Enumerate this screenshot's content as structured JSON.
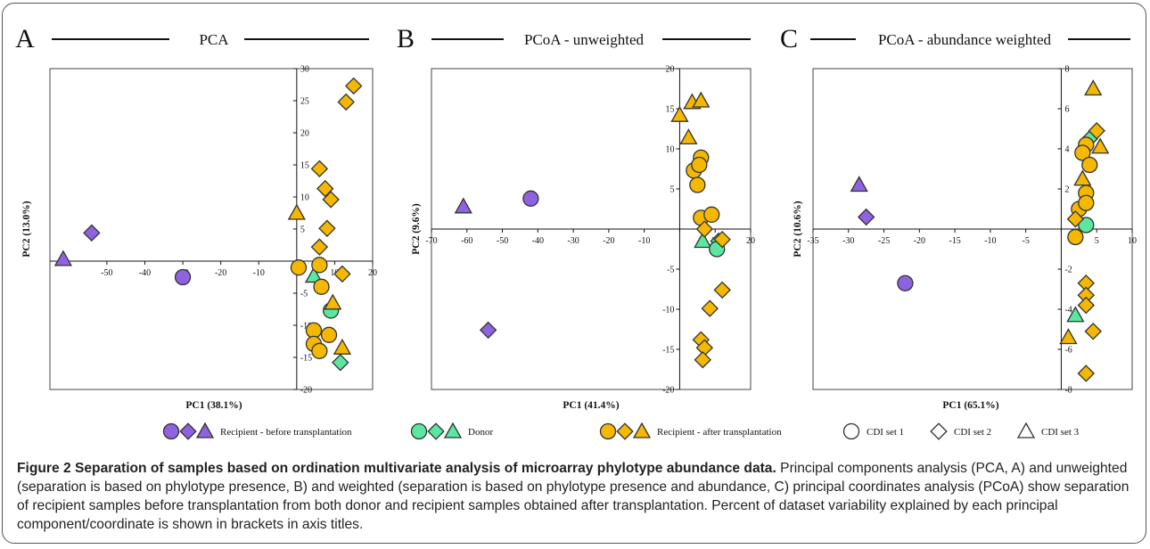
{
  "colors": {
    "before": "#8f63df",
    "donor": "#5ae8a0",
    "after": "#f5b800",
    "stroke": "#333333"
  },
  "legend": [
    {
      "markers": [
        "circle",
        "diamond",
        "triangle"
      ],
      "color": "before",
      "label": "Recipient - before transplantation"
    },
    {
      "markers": [
        "circle",
        "diamond",
        "triangle"
      ],
      "color": "donor",
      "label": "Donor"
    },
    {
      "markers": [
        "circle",
        "diamond",
        "triangle"
      ],
      "color": "after",
      "label": "Recipient - after transplantation"
    },
    {
      "markers": [
        "circle"
      ],
      "color": "none",
      "label": "CDI set 1"
    },
    {
      "markers": [
        "diamond"
      ],
      "color": "none",
      "label": "CDI set 2"
    },
    {
      "markers": [
        "triangle"
      ],
      "color": "none",
      "label": "CDI set 3"
    }
  ],
  "caption": {
    "title": "Figure 2 Separation of samples based on ordination multivariate analysis of microarray phylotype abundance data.",
    "body": "Principal components analysis (PCA, A) and unweighted (separation is based on phylotype presence, B) and weighted (separation is based on phylotype presence and abundance, C) principal coordinates analysis (PCoA) show separation of recipient samples before transplantation from both donor and recipient samples obtained after transplantation. Percent of dataset variability explained by each principal component/coordinate is shown in brackets in axis titles."
  },
  "chart_data": [
    {
      "type": "scatter",
      "panel": "A",
      "title": "PCA",
      "xlabel": "PC1 (38.1%)",
      "ylabel": "PC2 (13.0%)",
      "xlim": [
        -65,
        20
      ],
      "ylim": [
        -20,
        30
      ],
      "xticks": [
        -60,
        -50,
        -40,
        -30,
        -20,
        -10,
        0,
        10,
        20
      ],
      "xtick_labels": [
        "",
        "-50",
        "-40",
        "-30",
        "-20",
        "-10",
        "",
        "10",
        "20"
      ],
      "yticks": [
        -20,
        -15,
        -10,
        -5,
        0,
        5,
        10,
        15,
        20,
        25,
        30
      ],
      "yticklabel_side": "right",
      "points": [
        {
          "x": -61.5,
          "y": 0.3,
          "shape": "triangle",
          "group": "before"
        },
        {
          "x": -54,
          "y": 4.4,
          "shape": "diamond",
          "group": "before"
        },
        {
          "x": -30,
          "y": -2.5,
          "shape": "circle",
          "group": "before"
        },
        {
          "x": 4.5,
          "y": -2.3,
          "shape": "triangle",
          "group": "donor"
        },
        {
          "x": 9,
          "y": -7.7,
          "shape": "circle",
          "group": "donor"
        },
        {
          "x": 11.5,
          "y": -15.8,
          "shape": "diamond",
          "group": "donor"
        },
        {
          "x": 15,
          "y": 27.3,
          "shape": "diamond",
          "group": "after"
        },
        {
          "x": 13,
          "y": 24.8,
          "shape": "diamond",
          "group": "after"
        },
        {
          "x": 6,
          "y": 14.4,
          "shape": "diamond",
          "group": "after"
        },
        {
          "x": 7.5,
          "y": 11.3,
          "shape": "diamond",
          "group": "after"
        },
        {
          "x": 9,
          "y": 9.6,
          "shape": "diamond",
          "group": "after"
        },
        {
          "x": 0,
          "y": 7.5,
          "shape": "triangle",
          "group": "after"
        },
        {
          "x": 8,
          "y": 5.1,
          "shape": "diamond",
          "group": "after"
        },
        {
          "x": 6,
          "y": 2.2,
          "shape": "diamond",
          "group": "after"
        },
        {
          "x": 0.5,
          "y": -1.0,
          "shape": "circle",
          "group": "after"
        },
        {
          "x": 6,
          "y": -0.6,
          "shape": "circle",
          "group": "after"
        },
        {
          "x": 12,
          "y": -2.0,
          "shape": "diamond",
          "group": "after"
        },
        {
          "x": 6.5,
          "y": -4.0,
          "shape": "circle",
          "group": "after"
        },
        {
          "x": 9.5,
          "y": -6.5,
          "shape": "triangle",
          "group": "after"
        },
        {
          "x": 4.5,
          "y": -10.8,
          "shape": "circle",
          "group": "after"
        },
        {
          "x": 8.5,
          "y": -11.5,
          "shape": "circle",
          "group": "after"
        },
        {
          "x": 4.5,
          "y": -12.9,
          "shape": "circle",
          "group": "after"
        },
        {
          "x": 6,
          "y": -14.0,
          "shape": "circle",
          "group": "after"
        },
        {
          "x": 12,
          "y": -13.5,
          "shape": "triangle",
          "group": "after"
        }
      ]
    },
    {
      "type": "scatter",
      "panel": "B",
      "title": "PCoA - unweighted",
      "xlabel": "PC1 (41.4%)",
      "ylabel": "PC2 (9.6%)",
      "xlim": [
        -70,
        20
      ],
      "ylim": [
        -20,
        20
      ],
      "xticks": [
        -70,
        -60,
        -50,
        -40,
        -30,
        -20,
        -10,
        0,
        10,
        20
      ],
      "xtick_labels": [
        "-70",
        "-60",
        "-50",
        "-40",
        "-30",
        "-20",
        "-10",
        "",
        "10",
        "20"
      ],
      "yticks": [
        -20,
        -15,
        -10,
        -5,
        0,
        5,
        10,
        15,
        20
      ],
      "yticklabel_side": "left",
      "points": [
        {
          "x": -61,
          "y": 2.8,
          "shape": "triangle",
          "group": "before"
        },
        {
          "x": -42,
          "y": 3.8,
          "shape": "circle",
          "group": "before"
        },
        {
          "x": -54,
          "y": -12.6,
          "shape": "diamond",
          "group": "before"
        },
        {
          "x": 6.5,
          "y": -1.5,
          "shape": "triangle",
          "group": "donor"
        },
        {
          "x": 11,
          "y": -1.5,
          "shape": "diamond",
          "group": "donor"
        },
        {
          "x": 10.5,
          "y": -2.5,
          "shape": "circle",
          "group": "donor"
        },
        {
          "x": 0,
          "y": 14.2,
          "shape": "triangle",
          "group": "after"
        },
        {
          "x": 3.5,
          "y": 15.8,
          "shape": "triangle",
          "group": "after"
        },
        {
          "x": 6,
          "y": 16.0,
          "shape": "triangle",
          "group": "after"
        },
        {
          "x": 2.5,
          "y": 11.4,
          "shape": "triangle",
          "group": "after"
        },
        {
          "x": 6,
          "y": 8.9,
          "shape": "circle",
          "group": "after"
        },
        {
          "x": 4,
          "y": 7.3,
          "shape": "circle",
          "group": "after"
        },
        {
          "x": 5.5,
          "y": 8.0,
          "shape": "circle",
          "group": "after"
        },
        {
          "x": 5,
          "y": 5.5,
          "shape": "circle",
          "group": "after"
        },
        {
          "x": 6,
          "y": 1.4,
          "shape": "circle",
          "group": "after"
        },
        {
          "x": 9,
          "y": 1.8,
          "shape": "circle",
          "group": "after"
        },
        {
          "x": 7,
          "y": 0.0,
          "shape": "diamond",
          "group": "after"
        },
        {
          "x": 12,
          "y": -1.3,
          "shape": "diamond",
          "group": "after"
        },
        {
          "x": 12,
          "y": -7.6,
          "shape": "diamond",
          "group": "after"
        },
        {
          "x": 8.5,
          "y": -9.9,
          "shape": "diamond",
          "group": "after"
        },
        {
          "x": 6,
          "y": -13.8,
          "shape": "diamond",
          "group": "after"
        },
        {
          "x": 7,
          "y": -14.8,
          "shape": "diamond",
          "group": "after"
        },
        {
          "x": 6.5,
          "y": -16.3,
          "shape": "diamond",
          "group": "after"
        }
      ]
    },
    {
      "type": "scatter",
      "panel": "C",
      "title": "PCoA - abundance weighted",
      "xlabel": "PC1 (65.1%)",
      "ylabel": "PC2 (10.6%)",
      "xlim": [
        -35,
        10
      ],
      "ylim": [
        -8,
        8
      ],
      "xticks": [
        -35,
        -30,
        -25,
        -20,
        -15,
        -10,
        -5,
        0,
        5,
        10
      ],
      "xtick_labels": [
        "-35",
        "-30",
        "-25",
        "-20",
        "-15",
        "-10",
        "-5",
        "",
        "5",
        "10"
      ],
      "yticks": [
        -8,
        -6,
        -4,
        -2,
        0,
        2,
        4,
        6,
        8
      ],
      "yticklabel_side": "right",
      "points": [
        {
          "x": -28.5,
          "y": 2.2,
          "shape": "triangle",
          "group": "before"
        },
        {
          "x": -27.5,
          "y": 0.6,
          "shape": "diamond",
          "group": "before"
        },
        {
          "x": -22,
          "y": -2.7,
          "shape": "circle",
          "group": "before"
        },
        {
          "x": 4,
          "y": 4.5,
          "shape": "diamond",
          "group": "donor"
        },
        {
          "x": 3.5,
          "y": 0.2,
          "shape": "circle",
          "group": "donor"
        },
        {
          "x": 2,
          "y": -4.3,
          "shape": "triangle",
          "group": "donor"
        },
        {
          "x": 4.5,
          "y": 7.0,
          "shape": "triangle",
          "group": "after"
        },
        {
          "x": 5,
          "y": 4.9,
          "shape": "diamond",
          "group": "after"
        },
        {
          "x": 5.5,
          "y": 4.1,
          "shape": "triangle",
          "group": "after"
        },
        {
          "x": 3.5,
          "y": 4.2,
          "shape": "circle",
          "group": "after"
        },
        {
          "x": 3,
          "y": 3.8,
          "shape": "circle",
          "group": "after"
        },
        {
          "x": 4,
          "y": 3.2,
          "shape": "circle",
          "group": "after"
        },
        {
          "x": 3,
          "y": 2.5,
          "shape": "triangle",
          "group": "after"
        },
        {
          "x": 3.5,
          "y": 1.8,
          "shape": "circle",
          "group": "after"
        },
        {
          "x": 2.5,
          "y": 1.0,
          "shape": "circle",
          "group": "after"
        },
        {
          "x": 3.5,
          "y": 1.3,
          "shape": "circle",
          "group": "after"
        },
        {
          "x": 2,
          "y": 0.5,
          "shape": "diamond",
          "group": "after"
        },
        {
          "x": 2,
          "y": -0.4,
          "shape": "circle",
          "group": "after"
        },
        {
          "x": 3.5,
          "y": -2.7,
          "shape": "diamond",
          "group": "after"
        },
        {
          "x": 3.5,
          "y": -3.3,
          "shape": "diamond",
          "group": "after"
        },
        {
          "x": 3.5,
          "y": -3.8,
          "shape": "diamond",
          "group": "after"
        },
        {
          "x": 4.5,
          "y": -5.1,
          "shape": "diamond",
          "group": "after"
        },
        {
          "x": 1,
          "y": -5.4,
          "shape": "triangle",
          "group": "after"
        },
        {
          "x": 3.5,
          "y": -7.2,
          "shape": "diamond",
          "group": "after"
        }
      ]
    }
  ]
}
